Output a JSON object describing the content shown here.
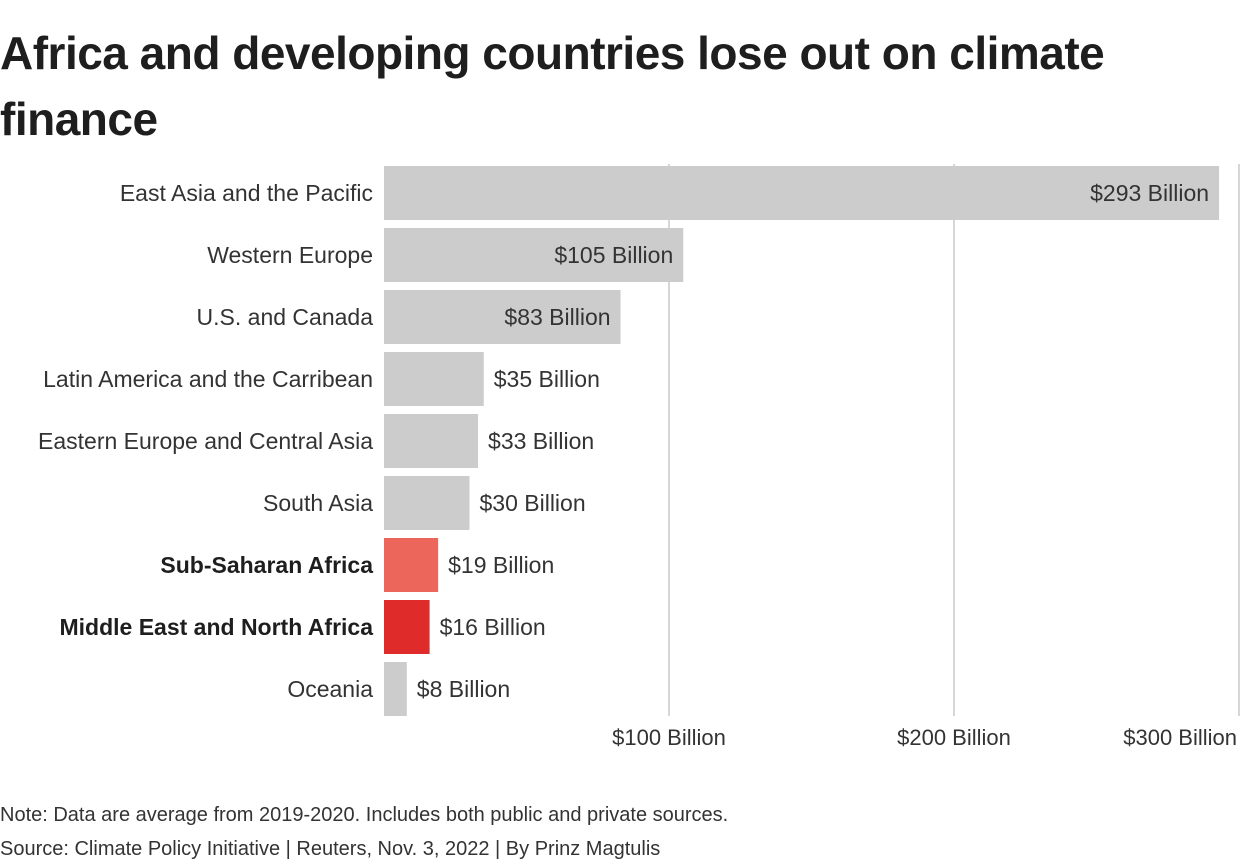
{
  "title": "Africa and developing countries lose out on climate finance",
  "note": "Note: Data are average from 2019-2020. Includes both public and private sources.",
  "source": "Source: Climate Policy Initiative | Reuters, Nov. 3, 2022 | By Prinz Magtulis",
  "colors": {
    "default_bar": "#cccccc",
    "sub_saharan_bar": "#ec665c",
    "mena_bar": "#df2c2a",
    "gridline": "#c8c8c8",
    "text": "#222222"
  },
  "chart_data": {
    "type": "bar",
    "orientation": "horizontal",
    "categories": [
      "East Asia and the Pacific",
      "Western Europe",
      "U.S. and Canada",
      "Latin America and the Carribean",
      "Eastern Europe and Central Asia",
      "South Asia",
      "Sub-Saharan Africa",
      "Middle East and North Africa",
      "Oceania"
    ],
    "values": [
      293,
      105,
      83,
      35,
      33,
      30,
      19,
      16,
      8
    ],
    "value_labels": [
      "$293 Billion",
      "$105 Billion",
      "$83 Billion",
      "$35 Billion",
      "$33 Billion",
      "$30 Billion",
      "$19 Billion",
      "$16 Billion",
      "$8 Billion"
    ],
    "highlighted": [
      false,
      false,
      false,
      false,
      false,
      false,
      true,
      true,
      false
    ],
    "bar_colors": [
      "#cccccc",
      "#cccccc",
      "#cccccc",
      "#cccccc",
      "#cccccc",
      "#cccccc",
      "#ec665c",
      "#df2c2a",
      "#cccccc"
    ],
    "xticks": [
      100,
      200,
      300
    ],
    "xtick_labels": [
      "$100 Billion",
      "$200 Billion",
      "$300 Billion"
    ],
    "xlim": [
      0,
      300
    ],
    "grid": true
  }
}
